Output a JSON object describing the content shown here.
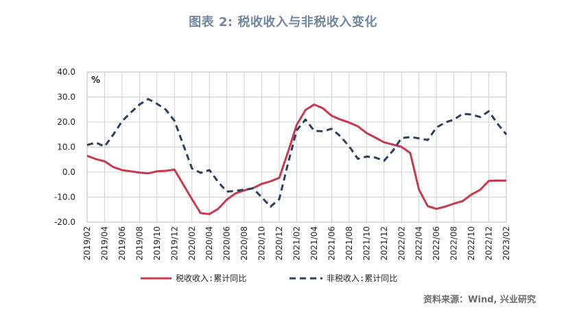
{
  "title": "图表 2:  税收收入与非税收入变化",
  "source": "资料来源：Wind, 兴业研究",
  "colors": {
    "series1": "#c9384f",
    "series2": "#2f3e5c",
    "grid": "#d0d0d0",
    "title": "#6f87a0"
  },
  "chart_data": {
    "type": "line",
    "unit_label": "%",
    "ylim": [
      -20,
      40
    ],
    "yticks": [
      -20,
      -10,
      0,
      10,
      20,
      30,
      40
    ],
    "ytick_labels": [
      "-20.0",
      "-10.0",
      "0.0",
      "10.0",
      "20.0",
      "30.0",
      "40.0"
    ],
    "grid": true,
    "legend_position": "bottom",
    "x": [
      "2019/02",
      "2019/03",
      "2019/04",
      "2019/05",
      "2019/06",
      "2019/07",
      "2019/08",
      "2019/09",
      "2019/10",
      "2019/11",
      "2019/12",
      "2020/01",
      "2020/02",
      "2020/03",
      "2020/04",
      "2020/05",
      "2020/06",
      "2020/07",
      "2020/08",
      "2020/09",
      "2020/10",
      "2020/11",
      "2020/12",
      "2021/01",
      "2021/02",
      "2021/03",
      "2021/04",
      "2021/05",
      "2021/06",
      "2021/07",
      "2021/08",
      "2021/09",
      "2021/10",
      "2021/11",
      "2021/12",
      "2022/01",
      "2022/02",
      "2022/03",
      "2022/04",
      "2022/05",
      "2022/06",
      "2022/07",
      "2022/08",
      "2022/09",
      "2022/10",
      "2022/11",
      "2022/12",
      "2023/01",
      "2023/02"
    ],
    "xtick_labels": [
      "2019/02",
      "2019/04",
      "2019/06",
      "2019/08",
      "2019/10",
      "2019/12",
      "2020/02",
      "2020/04",
      "2020/06",
      "2020/08",
      "2020/10",
      "2020/12",
      "2021/02",
      "2021/04",
      "2021/06",
      "2021/08",
      "2021/10",
      "2021/12",
      "2022/02",
      "2022/04",
      "2022/06",
      "2022/08",
      "2022/10",
      "2022/12",
      "2023/02"
    ],
    "series": [
      {
        "name": "税收收入:累计同比",
        "style": "solid",
        "values": [
          6.5,
          5.2,
          4.3,
          2.0,
          0.8,
          0.3,
          -0.2,
          -0.5,
          0.3,
          0.5,
          1.0,
          null,
          -10.8,
          -16.4,
          -16.8,
          -14.7,
          -11.0,
          -8.5,
          -7.3,
          -6.4,
          -4.7,
          -3.7,
          -2.3,
          8.0,
          18.9,
          24.8,
          27.0,
          25.5,
          22.5,
          21.0,
          19.8,
          18.3,
          15.6,
          13.8,
          11.9,
          11.0,
          10.1,
          7.6,
          -7.0,
          -13.6,
          -14.7,
          -13.8,
          -12.6,
          -11.6,
          -9.0,
          -7.1,
          -3.5,
          -3.4,
          -3.4
        ]
      },
      {
        "name": "非税收入:累计同比",
        "style": "dashed",
        "values": [
          10.8,
          11.8,
          10.2,
          15.0,
          20.3,
          23.8,
          27.0,
          29.2,
          27.3,
          25.0,
          20.5,
          null,
          1.5,
          -0.3,
          0.8,
          -3.9,
          -7.8,
          -7.5,
          -7.0,
          -6.5,
          -10.1,
          -13.8,
          -10.8,
          3.4,
          16.7,
          21.0,
          16.5,
          16.3,
          17.3,
          14.3,
          10.3,
          5.3,
          6.2,
          5.8,
          4.5,
          8.5,
          13.6,
          14.0,
          13.5,
          12.8,
          17.8,
          19.8,
          21.0,
          23.3,
          23.0,
          22.0,
          24.3,
          19.3,
          15.0
        ]
      }
    ]
  }
}
